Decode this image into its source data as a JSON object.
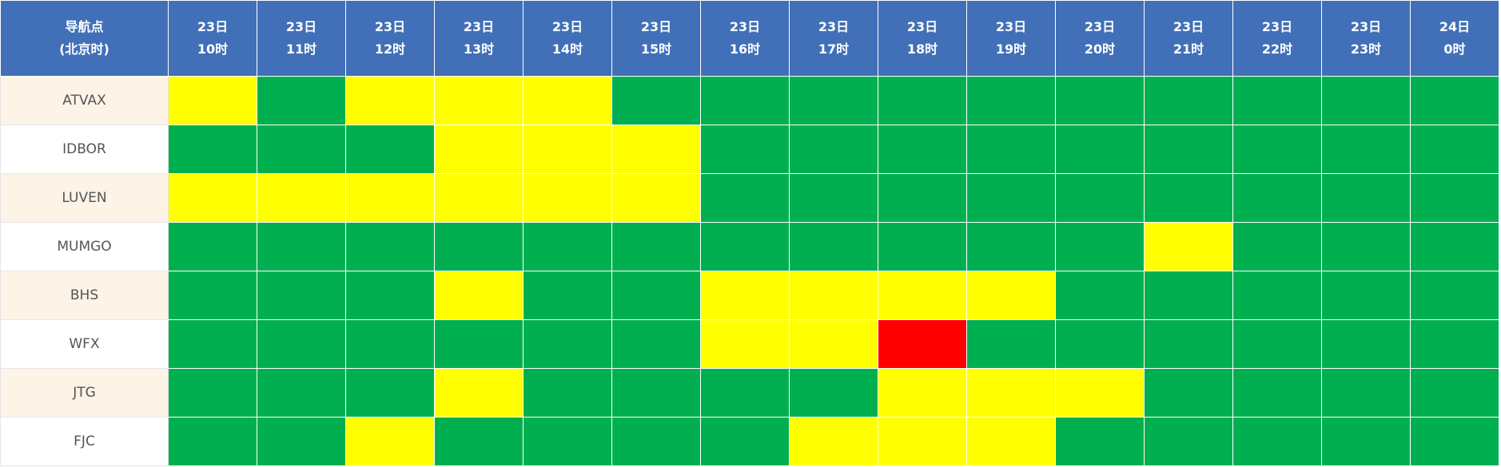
{
  "table": {
    "header": {
      "corner": [
        "导航点",
        "(北京时)"
      ],
      "columns": [
        [
          "23日",
          "10时"
        ],
        [
          "23日",
          "11时"
        ],
        [
          "23日",
          "12时"
        ],
        [
          "23日",
          "13时"
        ],
        [
          "23日",
          "14时"
        ],
        [
          "23日",
          "15时"
        ],
        [
          "23日",
          "16时"
        ],
        [
          "23日",
          "17时"
        ],
        [
          "23日",
          "18时"
        ],
        [
          "23日",
          "19时"
        ],
        [
          "23日",
          "20时"
        ],
        [
          "23日",
          "21时"
        ],
        [
          "23日",
          "22时"
        ],
        [
          "23日",
          "23时"
        ],
        [
          "24日",
          "0时"
        ]
      ]
    },
    "rows": [
      {
        "name": "ATVAX",
        "cells": [
          "#ffff00",
          "#00b050",
          "#ffff00",
          "#ffff00",
          "#ffff00",
          "#00b050",
          "#00b050",
          "#00b050",
          "#00b050",
          "#00b050",
          "#00b050",
          "#00b050",
          "#00b050",
          "#00b050",
          "#00b050"
        ]
      },
      {
        "name": "IDBOR",
        "cells": [
          "#00b050",
          "#00b050",
          "#00b050",
          "#ffff00",
          "#ffff00",
          "#ffff00",
          "#00b050",
          "#00b050",
          "#00b050",
          "#00b050",
          "#00b050",
          "#00b050",
          "#00b050",
          "#00b050",
          "#00b050"
        ]
      },
      {
        "name": "LUVEN",
        "cells": [
          "#ffff00",
          "#ffff00",
          "#ffff00",
          "#ffff00",
          "#ffff00",
          "#ffff00",
          "#00b050",
          "#00b050",
          "#00b050",
          "#00b050",
          "#00b050",
          "#00b050",
          "#00b050",
          "#00b050",
          "#00b050"
        ]
      },
      {
        "name": "MUMGO",
        "cells": [
          "#00b050",
          "#00b050",
          "#00b050",
          "#00b050",
          "#00b050",
          "#00b050",
          "#00b050",
          "#00b050",
          "#00b050",
          "#00b050",
          "#00b050",
          "#ffff00",
          "#00b050",
          "#00b050",
          "#00b050"
        ]
      },
      {
        "name": "BHS",
        "cells": [
          "#00b050",
          "#00b050",
          "#00b050",
          "#ffff00",
          "#00b050",
          "#00b050",
          "#ffff00",
          "#ffff00",
          "#ffff00",
          "#ffff00",
          "#00b050",
          "#00b050",
          "#00b050",
          "#00b050",
          "#00b050"
        ]
      },
      {
        "name": "WFX",
        "cells": [
          "#00b050",
          "#00b050",
          "#00b050",
          "#00b050",
          "#00b050",
          "#00b050",
          "#ffff00",
          "#ffff00",
          "#ff0000",
          "#00b050",
          "#00b050",
          "#00b050",
          "#00b050",
          "#00b050",
          "#00b050"
        ]
      },
      {
        "name": "JTG",
        "cells": [
          "#00b050",
          "#00b050",
          "#00b050",
          "#ffff00",
          "#00b050",
          "#00b050",
          "#00b050",
          "#00b050",
          "#ffff00",
          "#ffff00",
          "#ffff00",
          "#00b050",
          "#00b050",
          "#00b050",
          "#00b050"
        ]
      },
      {
        "name": "FJC",
        "cells": [
          "#00b050",
          "#00b050",
          "#ffff00",
          "#00b050",
          "#00b050",
          "#00b050",
          "#00b050",
          "#ffff00",
          "#ffff00",
          "#ffff00",
          "#00b050",
          "#00b050",
          "#00b050",
          "#00b050",
          "#00b050"
        ]
      }
    ]
  }
}
